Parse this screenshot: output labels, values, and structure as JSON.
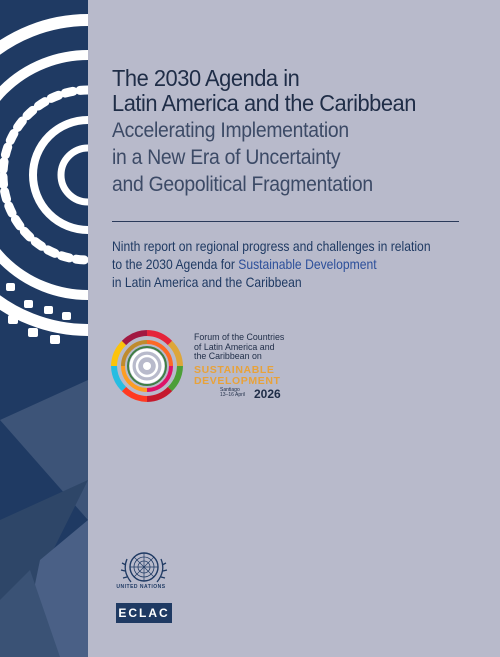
{
  "cover": {
    "title_lines": [
      "The 2030 Agenda in",
      "Latin America and the Caribbean"
    ],
    "subtitle_lines": [
      "Accelerating Implementation",
      "in a New Era of Uncertainty",
      "and Geopolitical Fragmentation"
    ],
    "description": {
      "line1": "Ninth report on regional progress and challenges in relation",
      "line2_pre": "to the 2030 Agenda for ",
      "line2_em": "Sustainable Development",
      "line3": "in Latin America and the Caribbean"
    }
  },
  "forum": {
    "lines": [
      "Forum of the Countries",
      "of Latin America and",
      "the Caribbean on"
    ],
    "big": [
      "SUSTAINABLE",
      "DEVELOPMENT"
    ],
    "place": [
      "Santiago",
      "13–16 April"
    ],
    "year": "2026"
  },
  "footer": {
    "un_label": "UNITED NATIONS",
    "eclac": "ECLAC"
  },
  "colors": {
    "background": "#b8bacb",
    "band": "#1f3a63",
    "accent_orange": "#e8a23a"
  }
}
